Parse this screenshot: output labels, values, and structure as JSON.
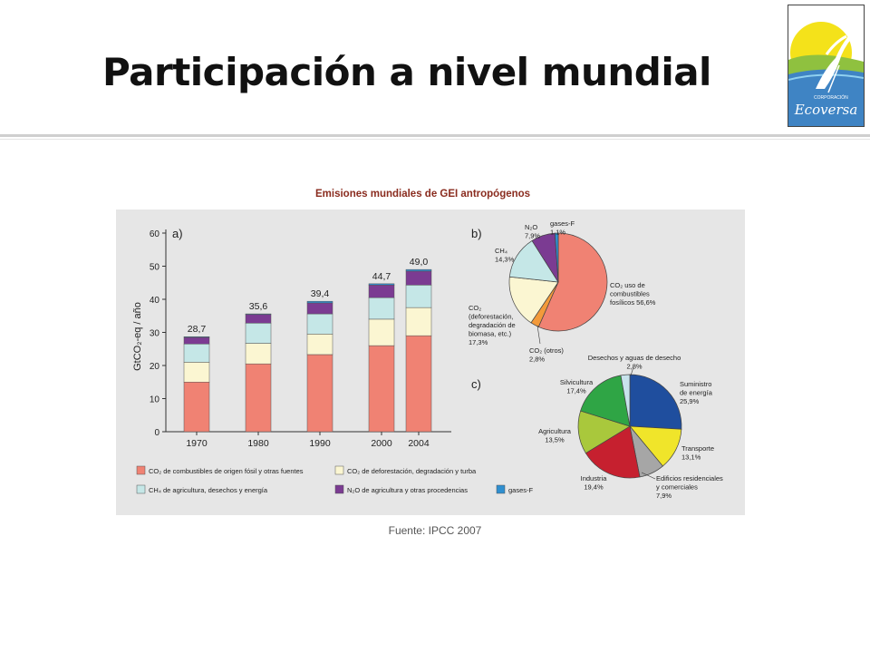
{
  "slide": {
    "title": "Participación a nivel mundial",
    "source": "Fuente: IPCC 2007",
    "logo": {
      "text": "Ecoversa",
      "subtext": "CORPORACIÓN"
    }
  },
  "colors": {
    "co2_fossil": "#f08273",
    "co2_defor": "#fbf6d2",
    "ch4": "#c5e7e7",
    "n2o": "#7b3b92",
    "fgas": "#2f8fd0",
    "panel": "#e6e6e6",
    "title_red": "#8a2c1f"
  },
  "chart_data": [
    {
      "type": "bar",
      "stacked": true,
      "panel_label": "a)",
      "title": "Emisiones mundiales de GEI antropógenos",
      "ylabel": "GtCO₂-eq / año",
      "ylim": [
        0,
        60
      ],
      "yticks": [
        0,
        10,
        20,
        30,
        40,
        50,
        60
      ],
      "categories": [
        "1970",
        "1980",
        "1990",
        "2000",
        "2004"
      ],
      "totals": [
        "28,7",
        "35,6",
        "39,4",
        "44,7",
        "49,0"
      ],
      "series": [
        {
          "name": "CO₂ de combustibles de origen fósil y otras fuentes",
          "color_key": "co2_fossil",
          "values": [
            15,
            20.5,
            23.3,
            26,
            29
          ]
        },
        {
          "name": "CO₂ de deforestación, degradación y turba",
          "color_key": "co2_defor",
          "values": [
            6,
            6.2,
            6.2,
            8,
            8.5
          ]
        },
        {
          "name": "CH₄ de agricultura, desechos y energía",
          "color_key": "ch4",
          "values": [
            5.5,
            6.1,
            6.1,
            6.5,
            6.8
          ]
        },
        {
          "name": "N₂O de agricultura y otras procedencias",
          "color_key": "n2o",
          "values": [
            2,
            2.6,
            3.3,
            3.8,
            4.2
          ]
        },
        {
          "name": "gases-F",
          "color_key": "fgas",
          "values": [
            0.2,
            0.2,
            0.5,
            0.4,
            0.5
          ]
        }
      ]
    },
    {
      "type": "pie",
      "panel_label": "b)",
      "slices": [
        {
          "label": "CO₂ uso de combustibles fosílicos 56,6%",
          "lines": [
            "CO₂ uso de",
            "combustibles",
            "fosílicos 56,6%"
          ],
          "value": 56.6,
          "color": "#f08273"
        },
        {
          "label": "CO₂ (otros) 2,8%",
          "lines": [
            "CO₂ (otros)",
            "2,8%"
          ],
          "value": 2.8,
          "color": "#f39a3a"
        },
        {
          "label": "CO₂ (deforestación, degradación de biomasa, etc.) 17,3%",
          "lines": [
            "CO₂",
            "(deforestación,",
            "degradación de",
            "biomasa, etc.)",
            "17,3%"
          ],
          "value": 17.3,
          "color": "#fbf6d2"
        },
        {
          "label": "CH₄ 14,3%",
          "lines": [
            "CH₄",
            "14,3%"
          ],
          "value": 14.3,
          "color": "#c5e7e7"
        },
        {
          "label": "N₂O 7,9%",
          "lines": [
            "N₂O",
            "7,9%"
          ],
          "value": 7.9,
          "color": "#7b3b92"
        },
        {
          "label": "gases-F 1,1%",
          "lines": [
            "gases-F",
            "1,1%"
          ],
          "value": 1.1,
          "color": "#2f8fd0"
        }
      ]
    },
    {
      "type": "pie",
      "panel_label": "c)",
      "slices": [
        {
          "label": "Suministro de energía 25,9%",
          "lines": [
            "Suministro",
            "de energía",
            "25,9%"
          ],
          "value": 25.9,
          "color": "#1f4e9e"
        },
        {
          "label": "Transporte 13,1%",
          "lines": [
            "Transporte",
            "13,1%"
          ],
          "value": 13.1,
          "color": "#f0e52a"
        },
        {
          "label": "Edificios residenciales y comerciales 7,9%",
          "lines": [
            "Edificios residenciales",
            "y comerciales",
            "7,9%"
          ],
          "value": 7.9,
          "color": "#a6a6a6"
        },
        {
          "label": "Industria 19,4%",
          "lines": [
            "Industria",
            "19,4%"
          ],
          "value": 19.4,
          "color": "#c6202f"
        },
        {
          "label": "Agricultura 13,5%",
          "lines": [
            "Agricultura",
            "13,5%"
          ],
          "value": 13.5,
          "color": "#a9c83c"
        },
        {
          "label": "Silvicultura 17,4%",
          "lines": [
            "Silvicultura",
            "17,4%"
          ],
          "value": 17.4,
          "color": "#2fa545"
        },
        {
          "label": "Desechos y aguas de desecho 2,8%",
          "lines": [
            "Desechos y aguas de desecho",
            "2,8%"
          ],
          "value": 2.8,
          "color": "#c8e3ec"
        }
      ]
    }
  ]
}
